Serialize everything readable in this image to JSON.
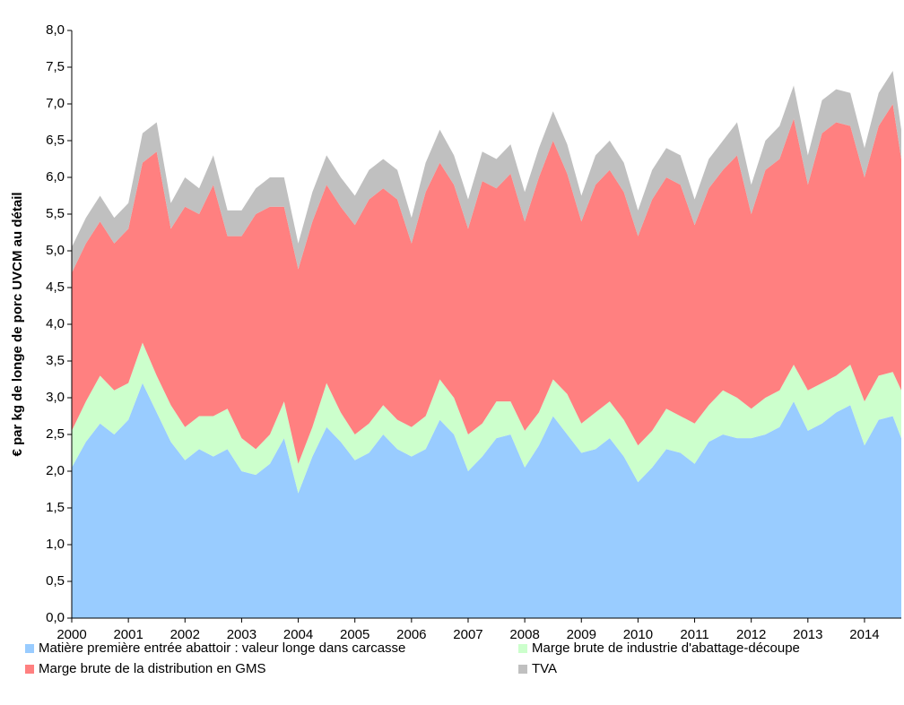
{
  "chart_data": {
    "type": "stacked-area",
    "y_label": "€ par kg de longe de porc UVCM au détail",
    "x": [
      2000,
      2000.25,
      2000.5,
      2000.75,
      2001,
      2001.25,
      2001.5,
      2001.75,
      2002,
      2002.25,
      2002.5,
      2002.75,
      2003,
      2003.25,
      2003.5,
      2003.75,
      2004,
      2004.25,
      2004.5,
      2004.75,
      2005,
      2005.25,
      2005.5,
      2005.75,
      2006,
      2006.25,
      2006.5,
      2006.75,
      2007,
      2007.25,
      2007.5,
      2007.75,
      2008,
      2008.25,
      2008.5,
      2008.75,
      2009,
      2009.25,
      2009.5,
      2009.75,
      2010,
      2010.25,
      2010.5,
      2010.75,
      2011,
      2011.25,
      2011.5,
      2011.75,
      2012,
      2012.25,
      2012.5,
      2012.75,
      2013,
      2013.25,
      2013.5,
      2013.75,
      2014,
      2014.25,
      2014.5,
      2014.65
    ],
    "series": [
      {
        "name": "Matière première entrée abattoir : valeur longe dans carcasse",
        "color": "#99ccff",
        "values": [
          2.05,
          2.4,
          2.65,
          2.5,
          2.7,
          3.2,
          2.8,
          2.4,
          2.15,
          2.3,
          2.2,
          2.3,
          2.0,
          1.95,
          2.1,
          2.45,
          1.7,
          2.2,
          2.6,
          2.4,
          2.15,
          2.25,
          2.5,
          2.3,
          2.2,
          2.3,
          2.7,
          2.5,
          2.0,
          2.2,
          2.45,
          2.5,
          2.05,
          2.35,
          2.75,
          2.5,
          2.25,
          2.3,
          2.45,
          2.2,
          1.85,
          2.05,
          2.3,
          2.25,
          2.1,
          2.4,
          2.5,
          2.45,
          2.45,
          2.5,
          2.6,
          2.95,
          2.55,
          2.65,
          2.8,
          2.9,
          2.35,
          2.7,
          2.75,
          2.45
        ]
      },
      {
        "name": "Marge brute de industrie d'abattage-découpe",
        "color": "#ccffcc",
        "values": [
          0.5,
          0.55,
          0.65,
          0.6,
          0.5,
          0.55,
          0.5,
          0.5,
          0.45,
          0.45,
          0.55,
          0.55,
          0.45,
          0.35,
          0.4,
          0.5,
          0.4,
          0.4,
          0.6,
          0.4,
          0.35,
          0.4,
          0.4,
          0.4,
          0.4,
          0.45,
          0.55,
          0.5,
          0.5,
          0.45,
          0.5,
          0.45,
          0.5,
          0.45,
          0.5,
          0.55,
          0.4,
          0.5,
          0.5,
          0.5,
          0.5,
          0.5,
          0.55,
          0.5,
          0.55,
          0.5,
          0.6,
          0.55,
          0.4,
          0.5,
          0.5,
          0.5,
          0.55,
          0.55,
          0.5,
          0.55,
          0.6,
          0.6,
          0.6,
          0.65
        ]
      },
      {
        "name": "Marge brute de la distribution en GMS",
        "color": "#ff8080",
        "values": [
          2.15,
          2.15,
          2.1,
          2.0,
          2.1,
          2.45,
          3.05,
          2.4,
          3.0,
          2.75,
          3.15,
          2.35,
          2.75,
          3.2,
          3.1,
          2.65,
          2.65,
          2.8,
          2.7,
          2.8,
          2.85,
          3.05,
          2.95,
          3.0,
          2.5,
          3.05,
          2.95,
          2.9,
          2.8,
          3.3,
          2.9,
          3.1,
          2.85,
          3.2,
          3.25,
          3.0,
          2.75,
          3.1,
          3.15,
          3.1,
          2.85,
          3.15,
          3.15,
          3.15,
          2.7,
          2.95,
          3.0,
          3.3,
          2.65,
          3.1,
          3.15,
          3.35,
          2.8,
          3.4,
          3.45,
          3.25,
          3.05,
          3.4,
          3.65,
          3.15
        ]
      },
      {
        "name": "TVA",
        "color": "#c0c0c0",
        "values": [
          0.35,
          0.35,
          0.35,
          0.35,
          0.35,
          0.4,
          0.4,
          0.35,
          0.4,
          0.35,
          0.4,
          0.35,
          0.35,
          0.35,
          0.4,
          0.4,
          0.35,
          0.4,
          0.4,
          0.4,
          0.4,
          0.4,
          0.4,
          0.4,
          0.35,
          0.4,
          0.45,
          0.4,
          0.4,
          0.4,
          0.4,
          0.4,
          0.4,
          0.4,
          0.4,
          0.4,
          0.35,
          0.4,
          0.4,
          0.4,
          0.35,
          0.4,
          0.4,
          0.4,
          0.35,
          0.4,
          0.4,
          0.45,
          0.4,
          0.4,
          0.45,
          0.45,
          0.4,
          0.45,
          0.45,
          0.45,
          0.4,
          0.45,
          0.45,
          0.4
        ]
      }
    ],
    "xlim": [
      2000,
      2014.65
    ],
    "xticks": [
      2000,
      2001,
      2002,
      2003,
      2004,
      2005,
      2006,
      2007,
      2008,
      2009,
      2010,
      2011,
      2012,
      2013,
      2014
    ],
    "ylim": [
      0,
      8
    ],
    "yticks": [
      {
        "value": 0,
        "label": "0,0"
      },
      {
        "value": 0.5,
        "label": "0,5"
      },
      {
        "value": 1,
        "label": "1,0"
      },
      {
        "value": 1.5,
        "label": "1,5"
      },
      {
        "value": 2,
        "label": "2,0"
      },
      {
        "value": 2.5,
        "label": "2,5"
      },
      {
        "value": 3,
        "label": "3,0"
      },
      {
        "value": 3.5,
        "label": "3,5"
      },
      {
        "value": 4,
        "label": "4,0"
      },
      {
        "value": 4.5,
        "label": "4,5"
      },
      {
        "value": 5,
        "label": "5,0"
      },
      {
        "value": 5.5,
        "label": "5,5"
      },
      {
        "value": 6,
        "label": "6,0"
      },
      {
        "value": 6.5,
        "label": "6,5"
      },
      {
        "value": 7,
        "label": "7,0"
      },
      {
        "value": 7.5,
        "label": "7,5"
      },
      {
        "value": 8,
        "label": "8,0"
      }
    ],
    "grid": false
  }
}
